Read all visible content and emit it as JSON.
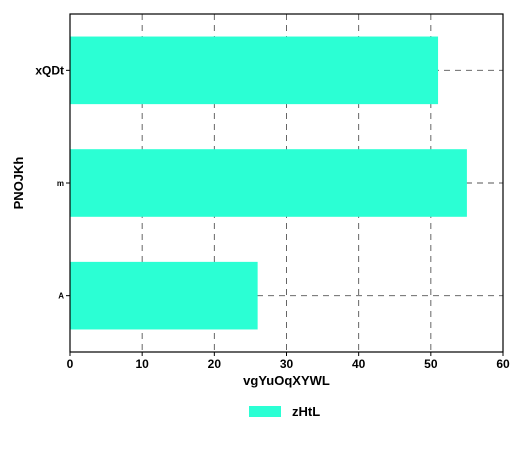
{
  "chart_data": {
    "type": "bar",
    "orientation": "horizontal",
    "categories": [
      "xQDt",
      "m",
      "A"
    ],
    "series": [
      {
        "name": "zHtL",
        "values": [
          51,
          55,
          26
        ],
        "color": "#2bffd4"
      }
    ],
    "title": "",
    "xlabel": "vgYuOqXYWL",
    "ylabel": "PNOJKh",
    "xlim": [
      0,
      60
    ],
    "xticks": [
      0,
      10,
      20,
      30,
      40,
      50,
      60
    ],
    "xtick_labels": [
      "0",
      "10",
      "20",
      "30",
      "40",
      "50",
      "60"
    ],
    "grid": true,
    "grid_style": "dashed",
    "legend": {
      "position": "bottom-center",
      "labels": [
        "zHtL"
      ]
    }
  }
}
